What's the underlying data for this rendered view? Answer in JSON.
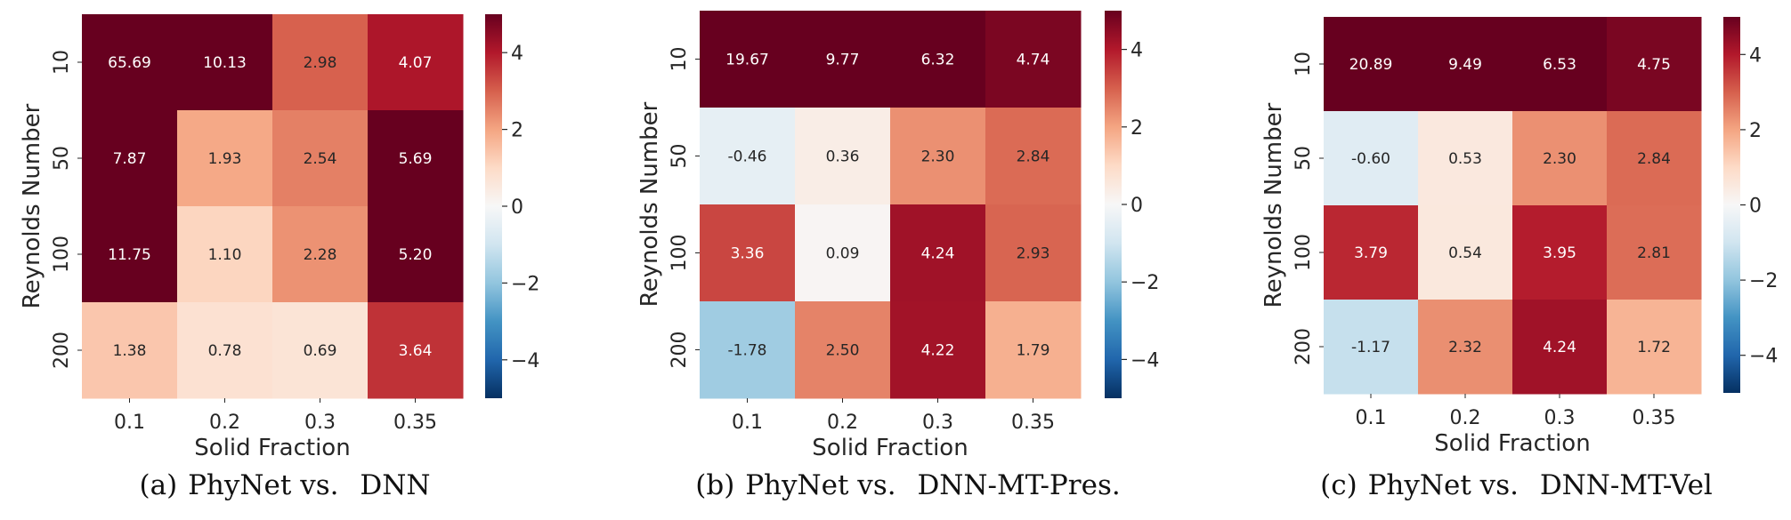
{
  "chart_data": [
    {
      "type": "heatmap",
      "caption_tag": "(a)",
      "caption_left": "PhyNet vs.",
      "caption_right": "DNN",
      "xlabel": "Solid Fraction",
      "ylabel": "Reynolds Number",
      "x_categories": [
        "0.1",
        "0.2",
        "0.3",
        "0.35"
      ],
      "y_categories": [
        "10",
        "50",
        "100",
        "200"
      ],
      "values": [
        [
          65.69,
          10.13,
          2.98,
          4.07
        ],
        [
          7.87,
          1.93,
          2.54,
          5.69
        ],
        [
          11.75,
          1.1,
          2.28,
          5.2
        ],
        [
          1.38,
          0.78,
          0.69,
          3.64
        ]
      ],
      "cell_labels": [
        [
          "65.69",
          "10.13",
          "2.98",
          "4.07"
        ],
        [
          "7.87",
          "1.93",
          "2.54",
          "5.69"
        ],
        [
          "11.75",
          "1.10",
          "2.28",
          "5.20"
        ],
        [
          "1.38",
          "0.78",
          "0.69",
          "3.64"
        ]
      ],
      "colorbar": {
        "vmin": -5,
        "vmax": 5,
        "ticks": [
          4,
          2,
          0,
          -2,
          -4
        ],
        "tick_labels": [
          "4",
          "2",
          "0",
          "−2",
          "−4"
        ],
        "colormap": "RdBu_r"
      }
    },
    {
      "type": "heatmap",
      "caption_tag": "(b)",
      "caption_left": "PhyNet vs.",
      "caption_right": "DNN-MT-Pres.",
      "xlabel": "Solid Fraction",
      "ylabel": "Reynolds Number",
      "x_categories": [
        "0.1",
        "0.2",
        "0.3",
        "0.35"
      ],
      "y_categories": [
        "10",
        "50",
        "100",
        "200"
      ],
      "values": [
        [
          19.67,
          9.77,
          6.32,
          4.74
        ],
        [
          -0.46,
          0.36,
          2.3,
          2.84
        ],
        [
          3.36,
          0.09,
          4.24,
          2.93
        ],
        [
          -1.78,
          2.5,
          4.22,
          1.79
        ]
      ],
      "cell_labels": [
        [
          "19.67",
          "9.77",
          "6.32",
          "4.74"
        ],
        [
          "-0.46",
          "0.36",
          "2.30",
          "2.84"
        ],
        [
          "3.36",
          "0.09",
          "4.24",
          "2.93"
        ],
        [
          "-1.78",
          "2.50",
          "4.22",
          "1.79"
        ]
      ],
      "colorbar": {
        "vmin": -5,
        "vmax": 5,
        "ticks": [
          4,
          2,
          0,
          -2,
          -4
        ],
        "tick_labels": [
          "4",
          "2",
          "0",
          "−2",
          "−4"
        ],
        "colormap": "RdBu_r"
      }
    },
    {
      "type": "heatmap",
      "caption_tag": "(c)",
      "caption_left": "PhyNet vs.",
      "caption_right": "DNN-MT-Vel",
      "xlabel": "Solid Fraction",
      "ylabel": "Reynolds Number",
      "x_categories": [
        "0.1",
        "0.2",
        "0.3",
        "0.35"
      ],
      "y_categories": [
        "10",
        "50",
        "100",
        "200"
      ],
      "values": [
        [
          20.89,
          9.49,
          6.53,
          4.75
        ],
        [
          -0.6,
          0.53,
          2.3,
          2.84
        ],
        [
          3.79,
          0.54,
          3.95,
          2.81
        ],
        [
          -1.17,
          2.32,
          4.24,
          1.72
        ]
      ],
      "cell_labels": [
        [
          "20.89",
          "9.49",
          "6.53",
          "4.75"
        ],
        [
          "-0.60",
          "0.53",
          "2.30",
          "2.84"
        ],
        [
          "3.79",
          "0.54",
          "3.95",
          "2.81"
        ],
        [
          "-1.17",
          "2.32",
          "4.24",
          "1.72"
        ]
      ],
      "colorbar": {
        "vmin": -5,
        "vmax": 5,
        "ticks": [
          4,
          2,
          0,
          -2,
          -4
        ],
        "tick_labels": [
          "4",
          "2",
          "0",
          "−2",
          "−4"
        ],
        "colormap": "RdBu_r"
      }
    }
  ]
}
